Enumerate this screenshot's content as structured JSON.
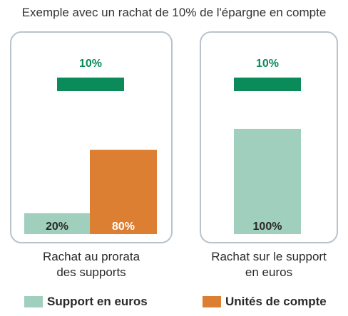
{
  "title": "Exemple avec un rachat de 10% de l'épargne en compte",
  "colors": {
    "support_euros": "#a1cfbd",
    "unites_compte": "#dd7f32",
    "rachat": "#0b8a5a",
    "panel_border": "#b9c3cc"
  },
  "legend": [
    {
      "key": "support_euros",
      "label": "Support en euros"
    },
    {
      "key": "unites_compte",
      "label": "Unités de compte"
    }
  ],
  "chart_data": [
    {
      "type": "bar",
      "caption_lines": [
        "Rachat au prorata",
        "des supports"
      ],
      "rachat_label": "10%",
      "rachat_value": 10,
      "ylim": [
        0,
        100
      ],
      "categories": [
        "Support en euros",
        "Unités de compte"
      ],
      "values": [
        20,
        80
      ],
      "value_labels": [
        "20%",
        "80%"
      ]
    },
    {
      "type": "bar",
      "caption_lines": [
        "Rachat sur le support",
        "en euros"
      ],
      "rachat_label": "10%",
      "rachat_value": 10,
      "ylim": [
        0,
        100
      ],
      "categories": [
        "Support en euros"
      ],
      "values": [
        100
      ],
      "value_labels": [
        "100%"
      ]
    }
  ]
}
